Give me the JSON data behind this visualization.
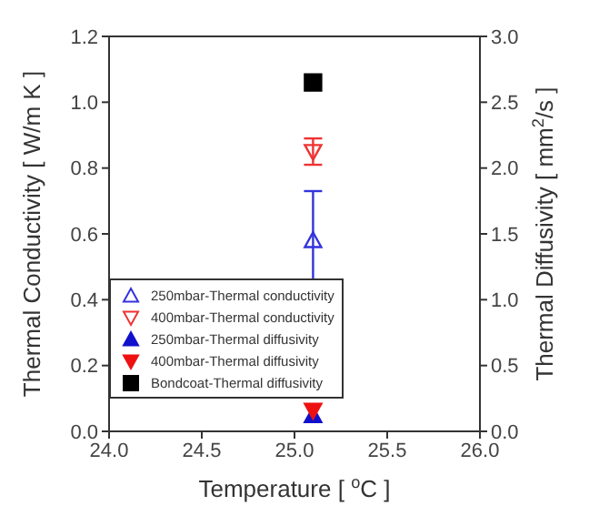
{
  "chart_data": {
    "type": "scatter",
    "xlabel": "Temperature [ $^{o}$C ]",
    "ylabel": "Thermal Conductivity [ W/m K ]",
    "y2label": "Thermal Diffusivity [ mm$^{2}$/s ]",
    "xlim": [
      24.0,
      26.0
    ],
    "xticks": [
      {
        "value": 24,
        "label": "24.0"
      },
      24.5,
      {
        "value": 25,
        "label": "25.0"
      },
      25.5,
      {
        "value": 26,
        "label": "26.0"
      }
    ],
    "ylim": [
      0,
      1.2
    ],
    "yticks": [
      {
        "value": 0,
        "label": "0.0"
      },
      0.2,
      0.4,
      0.6,
      0.8,
      {
        "value": 1,
        "label": "1.0"
      },
      1.2
    ],
    "y2lim": [
      0,
      3
    ],
    "y2ticks": [
      {
        "value": 0,
        "label": "0.0"
      },
      0.5,
      {
        "value": 1,
        "label": "1.0"
      },
      1.5,
      {
        "value": 2,
        "label": "2.0"
      },
      2.5,
      {
        "value": 3,
        "label": "3.0"
      }
    ],
    "legend": "bottom left",
    "x": [
      25.1
    ],
    "series": [
      {
        "name": "250mbar-Thermal conductivity",
        "color": "#3333dd",
        "marker": "triangle",
        "values": [
          0.58
        ],
        "errors": [
          0.15
        ]
      },
      {
        "name": "400mbar-Thermal conductivity",
        "color": "#ee3333",
        "marker": "triangle-down",
        "values": [
          0.85
        ],
        "errors": [
          0.04
        ]
      },
      {
        "name": "250mbar-Thermal diffusivity",
        "color": "#1111cc",
        "marker": "triangle",
        "axis": "y2",
        "values": [
          0.12
        ]
      },
      {
        "name": "400mbar-Thermal diffusivity",
        "color": "#ee1111",
        "marker": "triangle-down",
        "axis": "y2",
        "values": [
          0.16
        ]
      },
      {
        "name": "Bondcoat-Thermal diffusivity",
        "color": "#000000",
        "marker": "square",
        "axis": "y2",
        "values": [
          2.65
        ]
      }
    ]
  }
}
